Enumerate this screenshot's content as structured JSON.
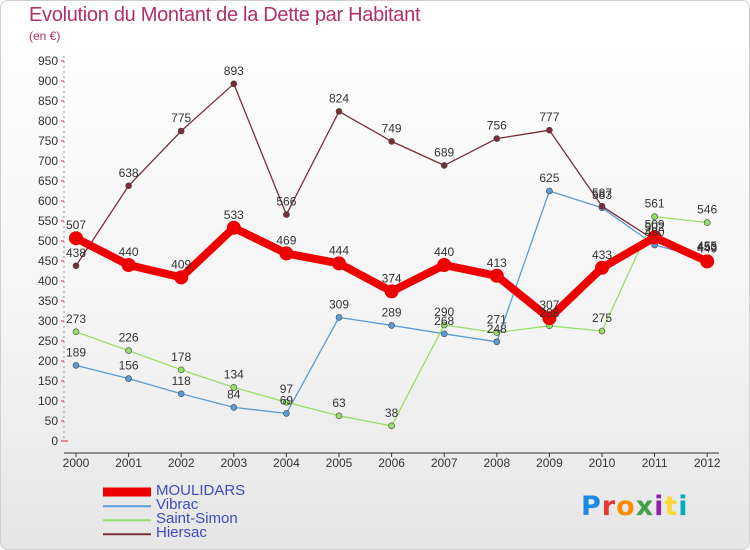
{
  "header": {
    "title": "Evolution du Montant de la Dette par Habitant",
    "unit": "(en €)"
  },
  "logo": {
    "letters": [
      "P",
      "r",
      "o",
      "x",
      "i",
      "t",
      "i"
    ],
    "colors": [
      "#1e88e5",
      "#e53935",
      "#fb8c00",
      "#43a047",
      "#8e24aa",
      "#fdd835",
      "#00acc1"
    ]
  },
  "chart_data": {
    "type": "line",
    "title": "Evolution du Montant de la Dette par Habitant",
    "ylabel": "(en €)",
    "xlabel": "",
    "x": [
      "2000",
      "2001",
      "2002",
      "2003",
      "2004",
      "2005",
      "2006",
      "2007",
      "2008",
      "2009",
      "2010",
      "2011",
      "2012"
    ],
    "ylim": [
      0,
      950
    ],
    "yticks": [
      0,
      50,
      100,
      150,
      200,
      250,
      300,
      350,
      400,
      450,
      500,
      550,
      600,
      650,
      700,
      750,
      800,
      850,
      900,
      950
    ],
    "grid": false,
    "legend": "bottom-left",
    "series": [
      {
        "name": "MOULIDARS",
        "color": "#ee0000",
        "values": [
          507,
          440,
          409,
          533,
          469,
          444,
          374,
          440,
          413,
          307,
          433,
          509,
          449
        ]
      },
      {
        "name": "Vibrac",
        "color": "#5b9bd5",
        "values": [
          189,
          156,
          118,
          84,
          69,
          309,
          289,
          268,
          248,
          625,
          583,
          490,
          455
        ]
      },
      {
        "name": "Saint-Simon",
        "color": "#99dd66",
        "values": [
          273,
          226,
          178,
          134,
          97,
          63,
          38,
          290,
          271,
          288,
          275,
          561,
          546
        ]
      },
      {
        "name": "Hiersac",
        "color": "#7a2f38",
        "values": [
          438,
          638,
          775,
          893,
          566,
          824,
          749,
          689,
          756,
          777,
          587,
          502,
          453
        ]
      }
    ],
    "data_labels": [
      [
        507,
        440,
        409,
        533,
        469,
        444,
        374,
        440,
        413,
        307,
        433,
        509,
        449
      ],
      [
        189,
        156,
        118,
        84,
        69,
        309,
        289,
        268,
        248,
        625,
        583,
        490,
        455
      ],
      [
        273,
        226,
        178,
        134,
        97,
        63,
        38,
        290,
        271,
        288,
        275,
        561,
        546
      ],
      [
        438,
        638,
        775,
        893,
        566,
        824,
        749,
        689,
        756,
        777,
        587,
        502,
        453
      ]
    ]
  }
}
